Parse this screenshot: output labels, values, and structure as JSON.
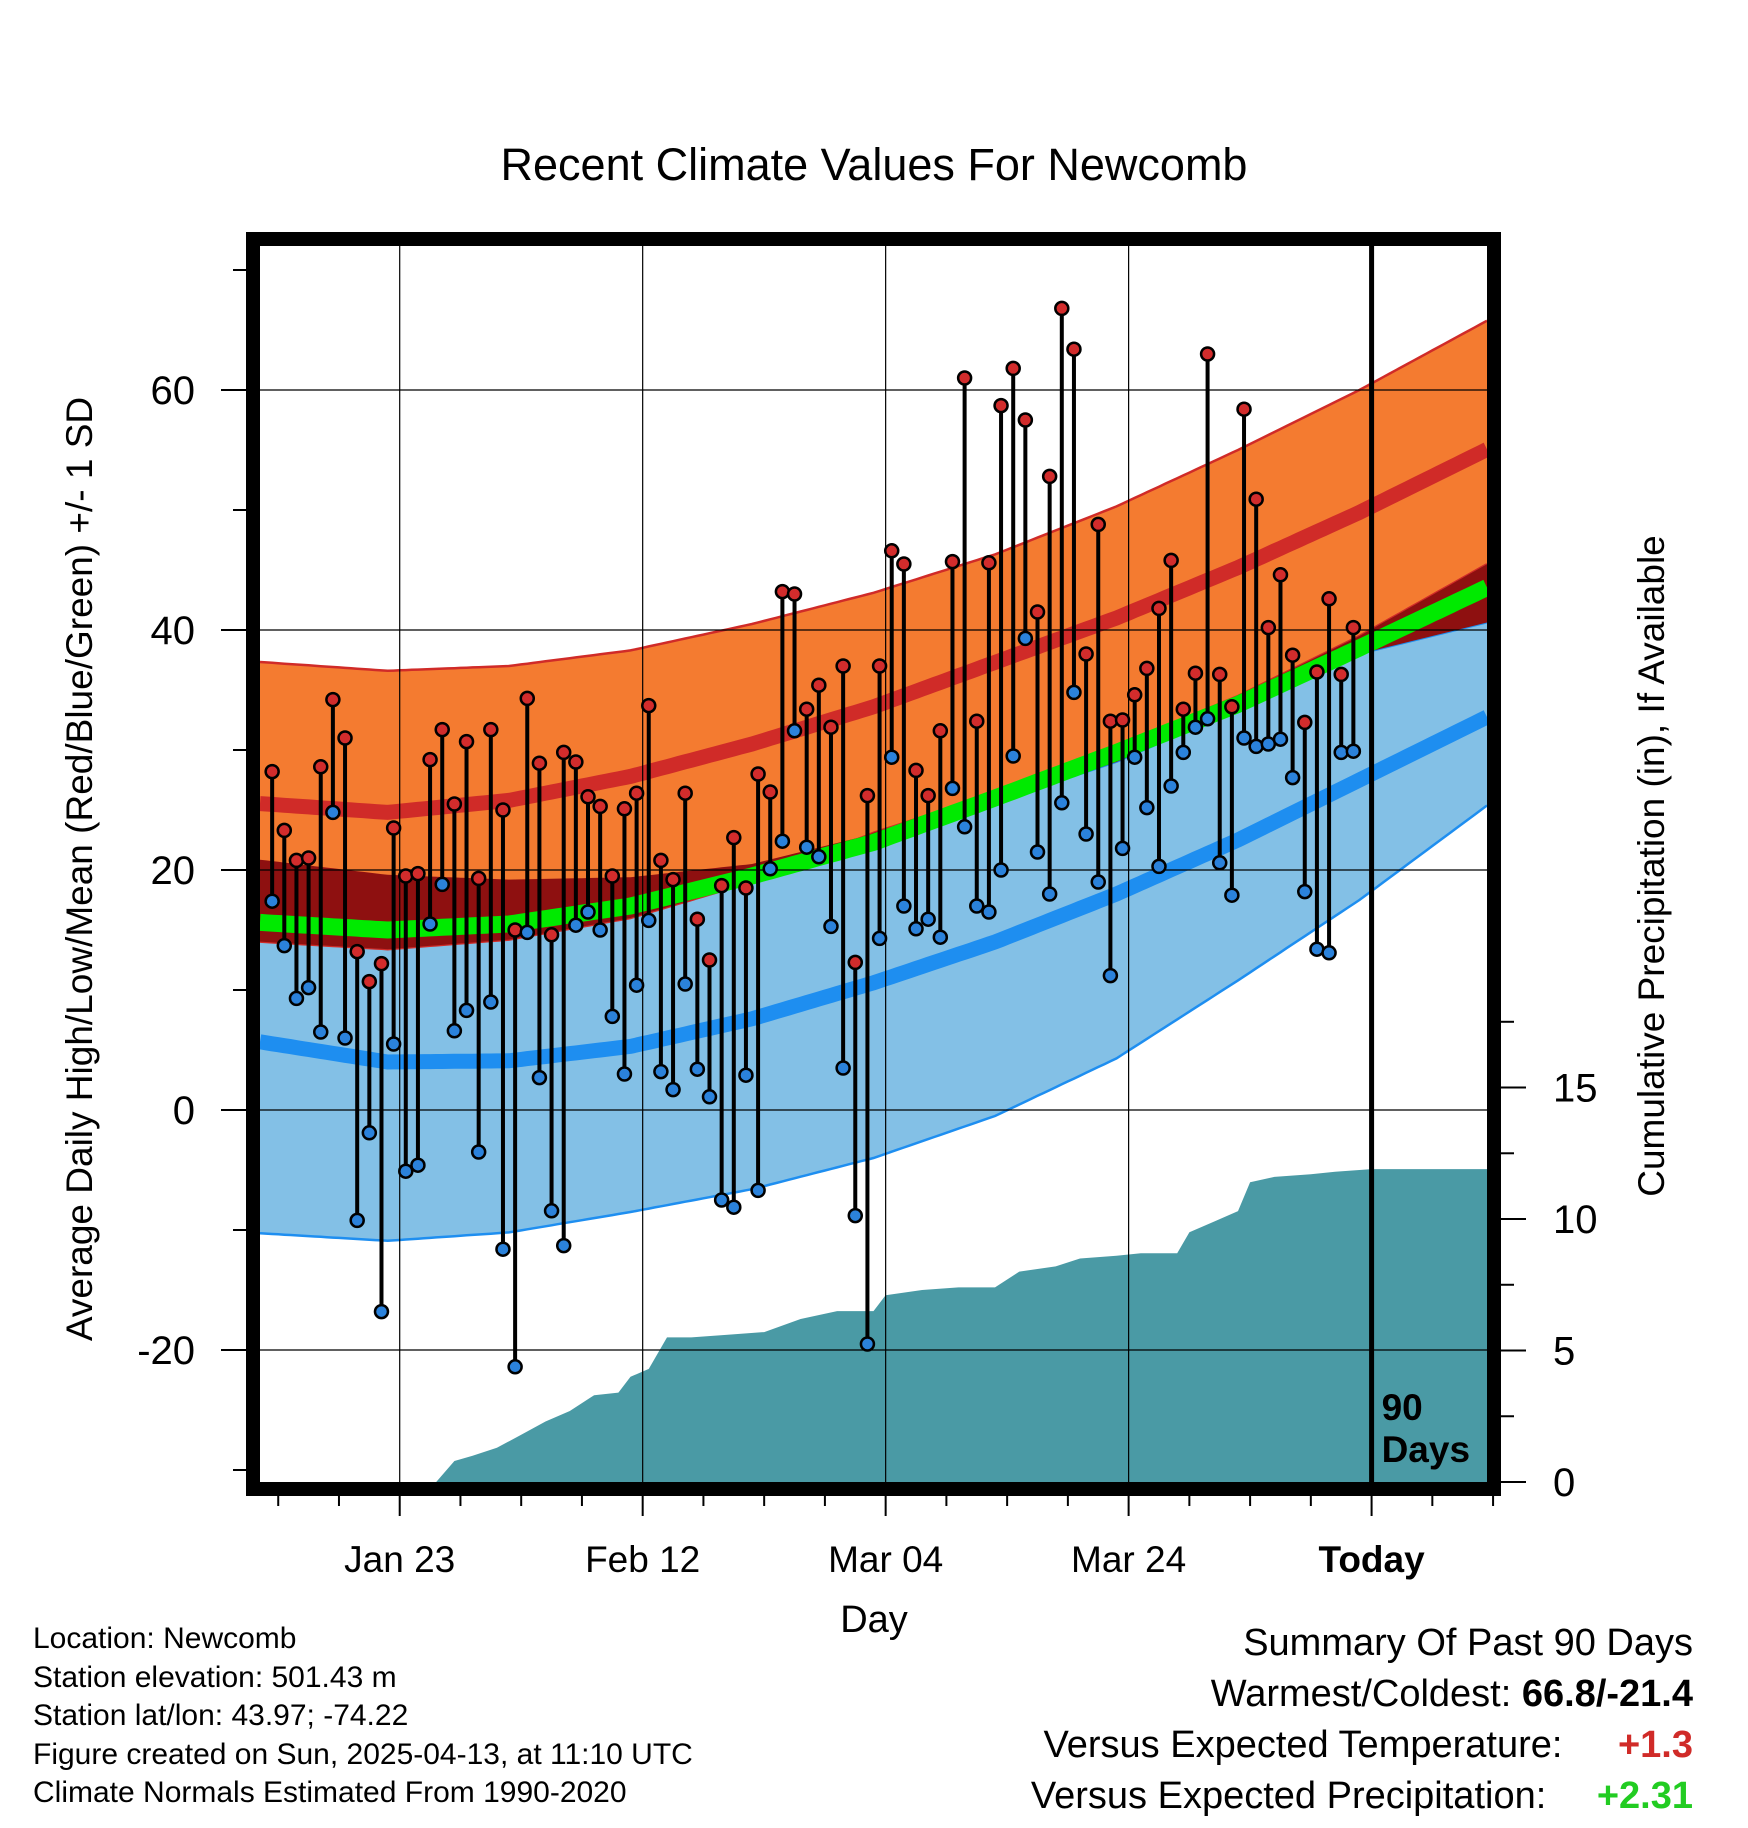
{
  "chart_data": {
    "type": "line",
    "title": "Recent Climate Values For Newcomb",
    "xlabel": "Day",
    "ylabel": "Average Daily High/Low/Mean (Red/Blue/Green) +/- 1 SD",
    "y2label": "Cumulative Precipitation (in), If Available",
    "xlim": [
      -0.5,
      100.5
    ],
    "ylim": [
      -31,
      72
    ],
    "y2lim": [
      0,
      47
    ],
    "x_ticks": [
      {
        "x": 11,
        "label": "Jan 23"
      },
      {
        "x": 31,
        "label": "Feb 12"
      },
      {
        "x": 51,
        "label": "Mar 04"
      },
      {
        "x": 71,
        "label": "Mar 24"
      },
      {
        "x": 91,
        "label": "Today"
      }
    ],
    "y_ticks": [
      -20,
      0,
      20,
      40,
      60
    ],
    "y2_ticks": [
      0,
      5,
      10,
      15
    ],
    "today_marker": {
      "x": 91,
      "label_line1": "90",
      "label_line2": "Days"
    },
    "normals": {
      "x": [
        0,
        10,
        20,
        30,
        40,
        50,
        60,
        70,
        80,
        90,
        100
      ],
      "high_mean": [
        25.5,
        24.8,
        25.8,
        27.8,
        30.5,
        33.6,
        37.3,
        41.0,
        45.2,
        49.8,
        54.8
      ],
      "high_plus_sd": [
        37.3,
        36.6,
        37.0,
        38.3,
        40.5,
        43.1,
        46.3,
        50.3,
        55.0,
        60.0,
        65.5
      ],
      "high_minus_sd": [
        14.0,
        13.4,
        14.2,
        16.0,
        19.0,
        23.1,
        26.4,
        30.3,
        34.5,
        39.5,
        45.2
      ],
      "mean_mean": [
        15.6,
        15.0,
        15.5,
        17.0,
        19.5,
        22.3,
        26.0,
        29.8,
        33.8,
        38.5,
        43.3
      ],
      "low_mean": [
        5.6,
        4.0,
        4.1,
        5.3,
        7.6,
        10.6,
        14.0,
        18.0,
        22.5,
        27.5,
        32.5
      ],
      "low_plus_sd": [
        20.8,
        19.6,
        19.2,
        19.4,
        20.5,
        23.0,
        25.6,
        29.0,
        33.4,
        38.0,
        40.5
      ],
      "low_minus_sd": [
        -10.3,
        -10.9,
        -10.2,
        -8.5,
        -6.6,
        -4.0,
        -0.5,
        4.3,
        10.8,
        17.5,
        25.0
      ]
    },
    "daily": {
      "high": [
        28.2,
        23.3,
        20.8,
        21.0,
        28.6,
        34.2,
        31.0,
        13.2,
        10.7,
        12.2,
        23.5,
        19.5,
        19.7,
        29.2,
        31.7,
        25.5,
        30.7,
        19.3,
        31.7,
        25.0,
        15.0,
        34.3,
        28.9,
        14.6,
        29.8,
        29.0,
        26.1,
        25.3,
        19.5,
        25.1,
        26.4,
        33.7,
        20.8,
        19.2,
        26.4,
        15.9,
        12.5,
        18.7,
        22.7,
        18.5,
        28.0,
        26.5,
        43.2,
        43.0,
        33.4,
        35.4,
        31.9,
        37.0,
        12.3,
        26.2,
        37.0,
        46.6,
        45.5,
        28.3,
        26.2,
        31.6,
        45.7,
        61.0,
        32.4,
        45.6,
        58.7,
        61.8,
        57.5,
        41.5,
        52.8,
        66.8,
        63.4,
        38.0,
        48.8,
        32.4,
        32.5,
        34.6,
        36.8,
        41.8,
        45.8,
        33.4,
        36.4,
        63.0,
        36.3,
        33.6,
        58.4,
        50.9,
        40.2,
        44.6,
        37.9,
        32.3,
        36.5,
        42.6,
        36.3,
        40.2
      ],
      "low": [
        17.4,
        13.7,
        9.3,
        10.2,
        6.5,
        24.8,
        6.0,
        -9.2,
        -1.9,
        -16.8,
        5.5,
        -5.1,
        -4.6,
        15.5,
        18.8,
        6.6,
        8.3,
        -3.5,
        9.0,
        -11.6,
        -21.4,
        14.8,
        2.7,
        -8.4,
        -11.3,
        15.4,
        16.5,
        15.0,
        7.8,
        3.0,
        10.4,
        15.8,
        3.2,
        1.7,
        10.5,
        3.4,
        1.1,
        -7.5,
        -8.1,
        2.9,
        -6.7,
        20.1,
        22.4,
        31.6,
        21.9,
        21.1,
        15.3,
        3.5,
        -8.8,
        -19.5,
        14.3,
        29.4,
        17.0,
        15.1,
        15.9,
        14.4,
        26.8,
        23.6,
        17.0,
        16.5,
        20.0,
        29.5,
        39.3,
        21.5,
        18.0,
        25.6,
        34.8,
        23.0,
        19.0,
        11.2,
        21.8,
        29.4,
        25.2,
        20.3,
        27.0,
        29.8,
        31.9,
        32.6,
        20.6,
        17.9,
        31.0,
        30.3,
        30.5,
        30.9,
        27.7,
        18.2,
        13.4,
        13.1,
        29.8,
        29.9
      ]
    },
    "precip_cumulative": [
      {
        "x": 14,
        "y": 0.0
      },
      {
        "x": 15.5,
        "y": 0.8
      },
      {
        "x": 17,
        "y": 1.0
      },
      {
        "x": 19,
        "y": 1.3
      },
      {
        "x": 21,
        "y": 1.8
      },
      {
        "x": 23,
        "y": 2.3
      },
      {
        "x": 25,
        "y": 2.7
      },
      {
        "x": 27,
        "y": 3.3
      },
      {
        "x": 29,
        "y": 3.4
      },
      {
        "x": 30,
        "y": 4.0
      },
      {
        "x": 31.5,
        "y": 4.3
      },
      {
        "x": 33,
        "y": 5.5
      },
      {
        "x": 35,
        "y": 5.5
      },
      {
        "x": 38,
        "y": 5.6
      },
      {
        "x": 41,
        "y": 5.7
      },
      {
        "x": 44,
        "y": 6.2
      },
      {
        "x": 47,
        "y": 6.5
      },
      {
        "x": 50,
        "y": 6.5
      },
      {
        "x": 51,
        "y": 7.1
      },
      {
        "x": 54,
        "y": 7.3
      },
      {
        "x": 57,
        "y": 7.4
      },
      {
        "x": 60,
        "y": 7.4
      },
      {
        "x": 62,
        "y": 8.0
      },
      {
        "x": 65,
        "y": 8.2
      },
      {
        "x": 67,
        "y": 8.5
      },
      {
        "x": 70,
        "y": 8.6
      },
      {
        "x": 72,
        "y": 8.7
      },
      {
        "x": 75,
        "y": 8.7
      },
      {
        "x": 76,
        "y": 9.5
      },
      {
        "x": 78,
        "y": 9.9
      },
      {
        "x": 80,
        "y": 10.3
      },
      {
        "x": 81,
        "y": 11.4
      },
      {
        "x": 83,
        "y": 11.6
      },
      {
        "x": 86,
        "y": 11.7
      },
      {
        "x": 88,
        "y": 11.8
      },
      {
        "x": 91,
        "y": 11.9
      },
      {
        "x": 100.5,
        "y": 11.9
      }
    ],
    "colors": {
      "high_band": "#f47b30",
      "high_line": "#d02b28",
      "overlap_band": "#8e1010",
      "low_band": "#83c0e6",
      "low_line": "#1e8ef0",
      "mean_line": "#00ea00",
      "precip": "#4a9aa5",
      "high_marker": "#d22c2c",
      "low_marker": "#2b82db"
    }
  },
  "footer": {
    "location": "Location: Newcomb",
    "elevation": "Station elevation: 501.43 m",
    "latlon": "Station lat/lon: 43.97; -74.22",
    "created": "Figure created on Sun, 2025-04-13, at 11:10 UTC",
    "normals": "Climate Normals Estimated From 1990-2020"
  },
  "summary": {
    "title": "Summary Of Past 90 Days",
    "warmest_label": "Warmest/Coldest:",
    "warmest_value": "66.8/-21.4",
    "temp_label": "Versus Expected Temperature:",
    "temp_value": "+1.3",
    "temp_color": "#d02b28",
    "precip_label": "Versus Expected Precipitation:",
    "precip_value": "+2.31",
    "precip_color": "#22cc22"
  }
}
